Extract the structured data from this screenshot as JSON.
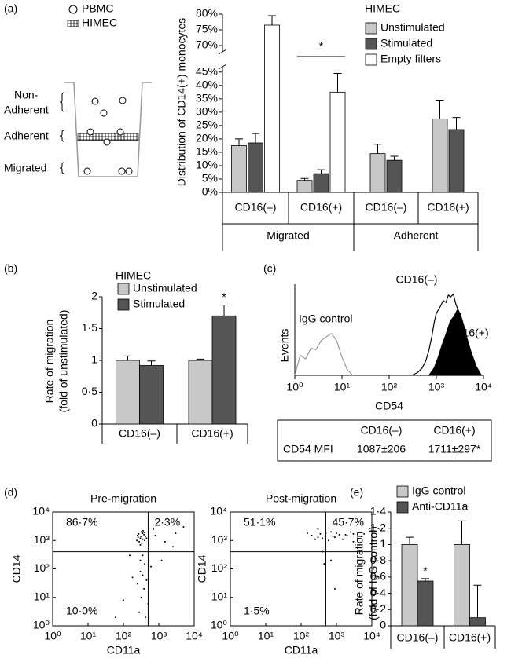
{
  "chart_data": [
    {
      "panel": "(a)",
      "type": "bar",
      "ylabel": "Distribution of CD14(+) monocytes",
      "legend_title": "HIMEC",
      "categories": [
        "CD16(–)",
        "CD16(+)",
        "CD16(–)",
        "CD16(+)"
      ],
      "groups": [
        {
          "name": "Migrated",
          "size": 2
        },
        {
          "name": "Adherent",
          "size": 2
        }
      ],
      "series": [
        {
          "name": "Unstimulated",
          "color": "#c8c8c8",
          "values": [
            17.5,
            4.5,
            14.5,
            27.5
          ],
          "errors": [
            2.5,
            0.7,
            3.5,
            7
          ]
        },
        {
          "name": "Stimulated",
          "color": "#555555",
          "values": [
            18.5,
            7,
            12,
            23.5
          ],
          "errors": [
            3.5,
            1.5,
            1.5,
            4.5
          ]
        },
        {
          "name": "Empty filters",
          "color": "#ffffff",
          "values": [
            76.5,
            37.5,
            null,
            null
          ],
          "errors": [
            3,
            7,
            null,
            null
          ]
        }
      ],
      "ylim": [
        0,
        80
      ],
      "axis_break": [
        47,
        68
      ],
      "yticks": [
        {
          "value": 0,
          "label": "0%"
        },
        {
          "value": 5,
          "label": "5%"
        },
        {
          "value": 10,
          "label": "10%"
        },
        {
          "value": 15,
          "label": "15%"
        },
        {
          "value": 20,
          "label": "20%"
        },
        {
          "value": 25,
          "label": "25%"
        },
        {
          "value": 30,
          "label": "30%"
        },
        {
          "value": 35,
          "label": "35%"
        },
        {
          "value": 40,
          "label": "40%"
        },
        {
          "value": 45,
          "label": "45%"
        },
        {
          "value": 70,
          "label": "70%"
        },
        {
          "value": 75,
          "label": "75%"
        },
        {
          "value": 80,
          "label": "80%"
        }
      ],
      "annotations": [
        {
          "text": "*",
          "category": 1,
          "from_series": 0,
          "to_series": 2
        }
      ]
    },
    {
      "panel": "(b)",
      "type": "bar",
      "ylabel": [
        "Rate of migration",
        "(fold of unstimulated)"
      ],
      "legend_title": "HIMEC",
      "categories": [
        "CD16(–)",
        "CD16(+)"
      ],
      "series": [
        {
          "name": "Unstimulated",
          "color": "#c8c8c8",
          "values": [
            1.0,
            1.0
          ],
          "errors": [
            0.07,
            0.02
          ]
        },
        {
          "name": "Stimulated",
          "color": "#555555",
          "values": [
            0.92,
            1.7
          ],
          "errors": [
            0.07,
            0.17
          ]
        }
      ],
      "ylim": [
        0,
        2
      ],
      "yticks": [
        0,
        {
          "value": 0.5,
          "label": "0·5"
        },
        1,
        {
          "value": 1.5,
          "label": "1·5"
        },
        2
      ],
      "annotations": [
        {
          "text": "*",
          "category": 1,
          "series": 1
        }
      ]
    },
    {
      "panel": "(c)",
      "type": "line",
      "xlabel": "CD54",
      "ylabel": "Events",
      "xscale": "log",
      "xlim": [
        1,
        10000
      ],
      "ylim": [
        0,
        100
      ],
      "xticks": [
        {
          "value": 1,
          "label": "10⁰"
        },
        {
          "value": 10,
          "label": "10¹"
        },
        {
          "value": 100,
          "label": "10²"
        },
        {
          "value": 1000,
          "label": "10³"
        },
        {
          "value": 10000,
          "label": "10⁴"
        }
      ],
      "series": [
        {
          "name": "IgG control",
          "color": "#999999",
          "x": [
            1,
            1.3,
            1.7,
            2.2,
            2.8,
            3.6,
            4.6,
            6,
            7.7,
            10,
            13,
            17
          ],
          "values": [
            0,
            22,
            18,
            30,
            28,
            38,
            42,
            46,
            38,
            20,
            6,
            0
          ]
        },
        {
          "name": "CD16(–)",
          "color": "#000000",
          "x": [
            300,
            400,
            500,
            600,
            700,
            800,
            900,
            1000,
            1200,
            1400,
            1600,
            1800,
            2000,
            2300,
            2600,
            3000,
            3500,
            4000,
            5000,
            6000,
            8000
          ],
          "values": [
            0,
            3,
            8,
            16,
            28,
            42,
            58,
            68,
            75,
            82,
            80,
            88,
            86,
            89,
            78,
            70,
            55,
            40,
            22,
            8,
            0
          ]
        },
        {
          "name": "CD16(+)",
          "color": "#000000",
          "filled": true,
          "x": [
            700,
            900,
            1100,
            1300,
            1600,
            2000,
            2400,
            2800,
            3200,
            3800,
            4500,
            5500,
            7000,
            9000
          ],
          "values": [
            0,
            8,
            20,
            32,
            45,
            60,
            65,
            72,
            68,
            55,
            40,
            25,
            10,
            0
          ]
        }
      ],
      "table": {
        "header": [
          "CD16(–)",
          "CD16(+)"
        ],
        "row_label": "CD54 MFI",
        "values": [
          "1087±206",
          "1711±297*"
        ]
      }
    },
    {
      "panel": "(d)",
      "type": "scatter",
      "title": "Pre-migration",
      "xlabel": "CD11a",
      "ylabel": "CD14",
      "xscale": "log",
      "yscale": "log",
      "xlim": [
        1,
        10000
      ],
      "ylim": [
        1,
        10000
      ],
      "xticks": [
        {
          "value": 1,
          "label": "10⁰"
        },
        {
          "value": 10,
          "label": "10¹"
        },
        {
          "value": 100,
          "label": "10²"
        },
        {
          "value": 1000,
          "label": "10³"
        },
        {
          "value": 10000,
          "label": "10⁴"
        }
      ],
      "yticks": [
        {
          "value": 1,
          "label": "10⁰"
        },
        {
          "value": 10,
          "label": "10¹"
        },
        {
          "value": 100,
          "label": "10²"
        },
        {
          "value": 1000,
          "label": "10³"
        },
        {
          "value": 10000,
          "label": "10⁴"
        }
      ],
      "quadrant": [
        500,
        400
      ],
      "quadrants": [
        {
          "value": 86.7,
          "label": "86·7%"
        },
        {
          "value": 2.3,
          "label": "2·3%"
        },
        {
          "value": 10.0,
          "label": "10·0%"
        }
      ],
      "x": [
        250,
        300,
        350,
        280,
        400,
        320,
        260,
        380,
        300,
        420,
        350,
        270,
        330,
        450,
        310,
        360,
        240,
        400,
        350,
        400,
        300,
        450,
        380,
        320,
        500,
        280,
        420,
        350,
        300,
        600,
        250,
        800,
        1500,
        2500,
        1200,
        3000,
        700,
        180,
        100,
        60,
        5000,
        150
      ],
      "values": [
        1500,
        1200,
        1800,
        900,
        1000,
        2000,
        1300,
        1600,
        700,
        1400,
        1100,
        1700,
        800,
        1200,
        1400,
        2200,
        1000,
        1900,
        300,
        150,
        80,
        40,
        20,
        10,
        6,
        3,
        2,
        60,
        200,
        120,
        30,
        1500,
        900,
        600,
        200,
        1800,
        2500,
        50,
        8,
        2,
        3000,
        300
      ]
    },
    {
      "type": "scatter",
      "title": "Post-migration",
      "xlabel": "CD11a",
      "ylabel": "CD14",
      "xscale": "log",
      "yscale": "log",
      "xlim": [
        1,
        10000
      ],
      "ylim": [
        1,
        10000
      ],
      "xticks": [
        {
          "value": 1,
          "label": "10⁰"
        },
        {
          "value": 10,
          "label": "10¹"
        },
        {
          "value": 100,
          "label": "10²"
        },
        {
          "value": 1000,
          "label": "10³"
        },
        {
          "value": 10000,
          "label": "10⁴"
        }
      ],
      "yticks": [
        {
          "value": 1,
          "label": "10⁰"
        },
        {
          "value": 10,
          "label": "10¹"
        },
        {
          "value": 100,
          "label": "10²"
        },
        {
          "value": 1000,
          "label": "10³"
        },
        {
          "value": 10000,
          "label": "10⁴"
        }
      ],
      "quadrant": [
        500,
        400
      ],
      "quadrants": [
        {
          "value": 51.1,
          "label": "51·1%"
        },
        {
          "value": 45.7,
          "label": "45·7%"
        },
        {
          "value": 1.5,
          "label": "1·5%"
        }
      ],
      "x": [
        200,
        300,
        500,
        800,
        1200,
        2000,
        3000,
        5000,
        400,
        700,
        1500,
        2500,
        4000,
        350,
        600,
        1000,
        1800,
        6000,
        250,
        900,
        400,
        450,
        900,
        700,
        300,
        3000,
        150
      ],
      "values": [
        1500,
        1300,
        1800,
        1400,
        1600,
        1500,
        1700,
        1400,
        1200,
        2000,
        1100,
        2000,
        1200,
        1700,
        1000,
        1800,
        1600,
        1700,
        1100,
        1300,
        400,
        150,
        20,
        200,
        2500,
        900,
        1800
      ]
    },
    {
      "panel": "(e)",
      "type": "bar",
      "ylabel": [
        "Rate of migration",
        "(fold of IgG control)"
      ],
      "categories": [
        "CD16(–)",
        "CD16(+)"
      ],
      "series": [
        {
          "name": "IgG control",
          "color": "#c8c8c8",
          "values": [
            1.0,
            1.0
          ],
          "errors": [
            0.09,
            0.29
          ]
        },
        {
          "name": "Anti-CD11a",
          "color": "#555555",
          "values": [
            0.55,
            0.1
          ],
          "errors": [
            0.03,
            0.4
          ]
        }
      ],
      "ylim": [
        0,
        1.4
      ],
      "yticks": [
        0,
        {
          "value": 0.2,
          "label": "0·2"
        },
        {
          "value": 0.4,
          "label": "0·4"
        },
        {
          "value": 0.6,
          "label": "0·6"
        },
        {
          "value": 0.8,
          "label": "0·8"
        },
        1,
        {
          "value": 1.2,
          "label": "1·2"
        },
        {
          "value": 1.4,
          "label": "1·4"
        }
      ],
      "annotations": [
        {
          "text": "*",
          "category": 0,
          "series": 1
        }
      ]
    }
  ],
  "diagram": {
    "legend": [
      "PBMC",
      "HIMEC"
    ],
    "regions": [
      [
        "Non-",
        "Adherent"
      ],
      [
        "Adherent"
      ],
      [
        "Migrated"
      ]
    ]
  }
}
